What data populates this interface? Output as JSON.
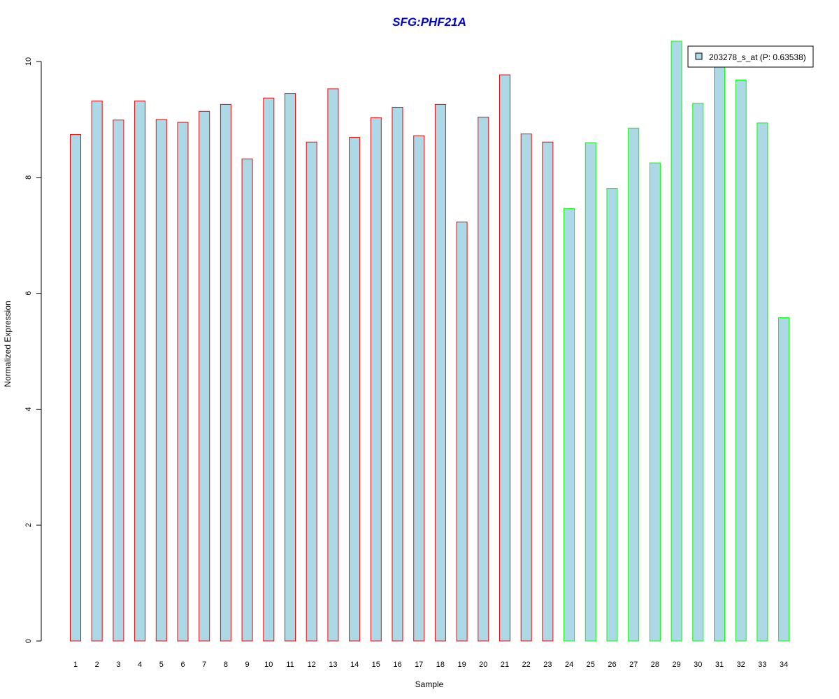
{
  "colors": {
    "bar_fill": "#add8e6",
    "group1_border": "#ff0000",
    "group2_border": "#00ff00",
    "title_color": "#0000cd"
  },
  "chart_data": {
    "type": "bar",
    "title": "SFG:PHF21A",
    "xlabel": "Sample",
    "ylabel": "Normalized Expression",
    "ylim": [
      0,
      10.4
    ],
    "yticks": [
      "0",
      "2",
      "4",
      "6",
      "8",
      "10"
    ],
    "grid": false,
    "legend_position": "top-right",
    "legend": "203278_s_at (P: 0.63538)",
    "categories": [
      "1",
      "2",
      "3",
      "4",
      "5",
      "6",
      "7",
      "8",
      "9",
      "10",
      "11",
      "12",
      "13",
      "14",
      "15",
      "16",
      "17",
      "18",
      "19",
      "20",
      "21",
      "22",
      "23",
      "24",
      "25",
      "26",
      "27",
      "28",
      "29",
      "30",
      "31",
      "32",
      "33",
      "34"
    ],
    "values": [
      8.74,
      9.32,
      8.99,
      9.32,
      9.0,
      8.95,
      9.14,
      9.26,
      8.32,
      9.37,
      9.45,
      8.61,
      9.53,
      8.69,
      9.03,
      9.21,
      8.72,
      9.26,
      7.23,
      9.04,
      9.77,
      8.75,
      8.61,
      7.46,
      8.6,
      7.81,
      8.85,
      8.25,
      10.35,
      9.28,
      9.95,
      9.68,
      8.94,
      5.58
    ],
    "groups": [
      1,
      1,
      1,
      1,
      1,
      1,
      1,
      1,
      1,
      1,
      1,
      1,
      1,
      1,
      1,
      1,
      1,
      1,
      1,
      1,
      1,
      1,
      1,
      2,
      2,
      2,
      2,
      2,
      2,
      2,
      2,
      2,
      2,
      2
    ]
  }
}
